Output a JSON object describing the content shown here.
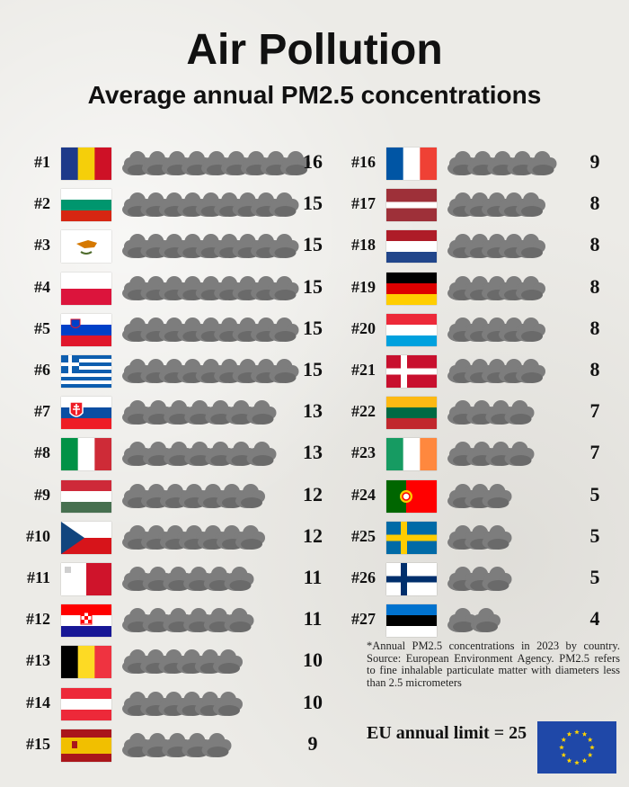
{
  "title": "Air Pollution",
  "subtitle": "Average annual PM2.5 concentrations",
  "chart_data": {
    "type": "bar",
    "title": "Air Pollution",
    "subtitle": "Average annual PM2.5 concentrations",
    "series": [
      {
        "values": [
          16,
          15,
          15,
          15,
          15,
          15,
          13,
          13,
          12,
          12,
          11,
          11,
          10,
          10,
          9,
          9,
          8,
          8,
          8,
          8,
          8,
          7,
          7,
          5,
          5,
          5,
          4
        ]
      }
    ],
    "ranks": [
      "#1",
      "#2",
      "#3",
      "#4",
      "#5",
      "#6",
      "#7",
      "#8",
      "#9",
      "#10",
      "#11",
      "#12",
      "#13",
      "#14",
      "#15",
      "#16",
      "#17",
      "#18",
      "#19",
      "#20",
      "#21",
      "#22",
      "#23",
      "#24",
      "#25",
      "#26",
      "#27"
    ],
    "flag_icons": [
      "romania-flag-icon",
      "bulgaria-flag-icon",
      "cyprus-flag-icon",
      "poland-flag-icon",
      "slovenia-flag-icon",
      "greece-flag-icon",
      "slovakia-flag-icon",
      "italy-flag-icon",
      "hungary-flag-icon",
      "czechia-flag-icon",
      "malta-flag-icon",
      "croatia-flag-icon",
      "belgium-flag-icon",
      "austria-flag-icon",
      "spain-flag-icon",
      "france-flag-icon",
      "latvia-flag-icon",
      "netherlands-flag-icon",
      "germany-flag-icon",
      "luxembourg-flag-icon",
      "denmark-flag-icon",
      "lithuania-flag-icon",
      "ireland-flag-icon",
      "portugal-flag-icon",
      "sweden-flag-icon",
      "finland-flag-icon",
      "estonia-flag-icon"
    ],
    "mark": "cloud-icon",
    "cloud_color": "#7d7d7d",
    "background_color": "#ecebe7"
  },
  "footnote": "*Annual PM2.5 concentrations in 2023 by country. Source: European Environment Agency. PM2.5 refers to fine inhalable particulate matter with diameters less than 2.5 micrometers",
  "limit_label": "EU annual limit = 25",
  "eu_flag_icon": "eu-flag-icon"
}
